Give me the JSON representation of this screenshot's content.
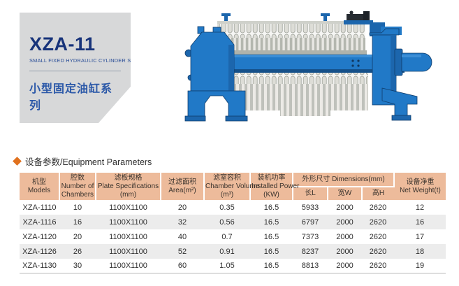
{
  "title_block": {
    "model": "XZA-11",
    "subtitle_en": "SMALL FIXED HYDRAULIC CYLINDER SERIES",
    "subtitle_cn": "小型固定油缸系列"
  },
  "section": {
    "title": "设备参数/Equipment Parameters"
  },
  "colors": {
    "accent_orange": "#e0711e",
    "title_navy": "#17337a",
    "table_header_bg": "#edbb9b",
    "machine_blue": "#2179c7",
    "title_box_gray": "#d7d8d9"
  },
  "machine": {
    "description": "filter-press-machine-illustration"
  },
  "table": {
    "header": {
      "models": {
        "cn": "机型",
        "en": "Models"
      },
      "chambers": {
        "cn": "腔数",
        "en": "Number of Chambers"
      },
      "plate_spec": {
        "cn": "滤板规格",
        "en": "Plate Specifications",
        "unit": "(mm)"
      },
      "area": {
        "cn": "过滤面积",
        "en": "Area(m²)"
      },
      "chamber_vol": {
        "cn": "滤室容积",
        "en": "Chamber Volume",
        "unit": "(m³)"
      },
      "installed_pwr": {
        "cn": "装机功率",
        "en": "Installed Power",
        "unit": "(KW)"
      },
      "dimensions": {
        "label": "外形尺寸 Dimensions(mm)",
        "sub": {
          "length": "长L",
          "width": "宽W",
          "height": "高H"
        }
      },
      "net_weight": {
        "cn": "设备净重",
        "en": "Net Weight(t)"
      }
    },
    "rows": [
      [
        "XZA-1110",
        "10",
        "1100X1100",
        "20",
        "0.35",
        "16.5",
        "5933",
        "2000",
        "2620",
        "12"
      ],
      [
        "XZA-1116",
        "16",
        "1100X1100",
        "32",
        "0.56",
        "16.5",
        "6797",
        "2000",
        "2620",
        "16"
      ],
      [
        "XZA-1120",
        "20",
        "1100X1100",
        "40",
        "0.7",
        "16.5",
        "7373",
        "2000",
        "2620",
        "17"
      ],
      [
        "XZA-1126",
        "26",
        "1100X1100",
        "52",
        "0.91",
        "16.5",
        "8237",
        "2000",
        "2620",
        "18"
      ],
      [
        "XZA-1130",
        "30",
        "1100X1100",
        "60",
        "1.05",
        "16.5",
        "8813",
        "2000",
        "2620",
        "19"
      ]
    ]
  }
}
